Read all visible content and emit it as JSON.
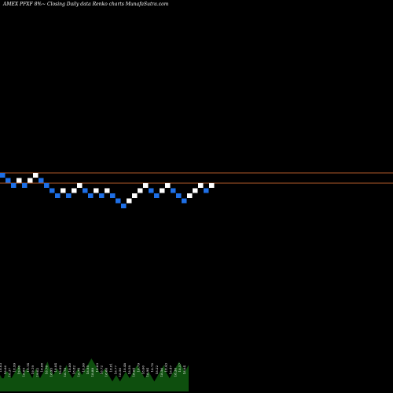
{
  "header": {
    "title": "AMEX  PFXF 8%~  Closing Daily data  Renko  charts MunafaSutra.com"
  },
  "colors": {
    "background": "#000000",
    "up_brick": "#ffffff",
    "down_brick": "#1e6fe6",
    "level_line": "#b05a2a",
    "volume_fill": "#0e4f0e",
    "volume_label": "#ffffff"
  },
  "chart_data": {
    "type": "renko",
    "title": "AMEX  PFXF 8%~  Closing Daily data  Renko  charts MunafaSutra.com",
    "brick_size": 1,
    "bricks": [
      {
        "dir": "down",
        "level": 0
      },
      {
        "dir": "down",
        "level": -1
      },
      {
        "dir": "down",
        "level": -2
      },
      {
        "dir": "up",
        "level": -1
      },
      {
        "dir": "down",
        "level": -2
      },
      {
        "dir": "up",
        "level": -1
      },
      {
        "dir": "up",
        "level": 0
      },
      {
        "dir": "down",
        "level": -1
      },
      {
        "dir": "down",
        "level": -2
      },
      {
        "dir": "down",
        "level": -3
      },
      {
        "dir": "down",
        "level": -4
      },
      {
        "dir": "up",
        "level": -3
      },
      {
        "dir": "down",
        "level": -4
      },
      {
        "dir": "up",
        "level": -3
      },
      {
        "dir": "up",
        "level": -2
      },
      {
        "dir": "down",
        "level": -3
      },
      {
        "dir": "down",
        "level": -4
      },
      {
        "dir": "up",
        "level": -3
      },
      {
        "dir": "down",
        "level": -4
      },
      {
        "dir": "up",
        "level": -3
      },
      {
        "dir": "down",
        "level": -4
      },
      {
        "dir": "down",
        "level": -5
      },
      {
        "dir": "down",
        "level": -6
      },
      {
        "dir": "up",
        "level": -5
      },
      {
        "dir": "up",
        "level": -4
      },
      {
        "dir": "up",
        "level": -3
      },
      {
        "dir": "up",
        "level": -2
      },
      {
        "dir": "down",
        "level": -3
      },
      {
        "dir": "down",
        "level": -4
      },
      {
        "dir": "up",
        "level": -3
      },
      {
        "dir": "up",
        "level": -2
      },
      {
        "dir": "down",
        "level": -3
      },
      {
        "dir": "down",
        "level": -4
      },
      {
        "dir": "down",
        "level": -5
      },
      {
        "dir": "up",
        "level": -4
      },
      {
        "dir": "up",
        "level": -3
      },
      {
        "dir": "up",
        "level": -2
      },
      {
        "dir": "down",
        "level": -3
      },
      {
        "dir": "up",
        "level": -2
      }
    ],
    "reference_levels": [
      1,
      -1
    ],
    "volume": {
      "values": [
        5,
        4,
        4,
        6,
        6,
        5,
        4,
        5,
        6,
        7,
        8,
        6,
        5,
        6,
        7,
        6,
        5,
        4,
        6,
        7,
        5,
        4,
        5,
        6,
        8,
        9,
        7,
        6,
        5,
        6,
        7,
        6,
        5,
        6,
        7,
        8,
        6,
        5,
        4,
        5,
        6,
        7,
        6,
        5,
        6,
        7,
        8,
        9,
        10,
        9,
        8,
        7,
        6,
        5,
        6,
        7,
        6,
        5,
        4,
        3,
        4,
        5,
        4,
        3,
        4,
        5,
        6,
        5,
        4,
        5,
        6,
        7,
        8,
        7,
        6,
        5,
        4,
        5,
        6,
        5,
        4,
        3,
        4,
        5,
        6,
        7,
        8,
        6,
        5,
        4,
        5,
        6,
        7,
        8,
        9,
        8,
        7,
        6,
        7,
        8
      ],
      "labels": [
        "18.03",
        "18.66",
        "18.37",
        "18.99",
        "19.00",
        "18.85",
        "19.14",
        "19.19",
        "19.02",
        "18.88",
        "18.76",
        "18.95",
        "18.84",
        "18.92",
        "18.78",
        "18.80",
        "18.82",
        "18.74",
        "18.90",
        "18.95",
        "18.88",
        "18.63",
        "18.72",
        "18.66",
        "18.81",
        "18.77",
        "18.56",
        "18.48",
        "18.59",
        "18.64",
        "18.79",
        "18.60",
        "18.94",
        "18.70",
        "18.22",
        "18.56",
        "18.43",
        "18.47",
        "18.38",
        "18.57",
        "18.64"
      ]
    }
  }
}
